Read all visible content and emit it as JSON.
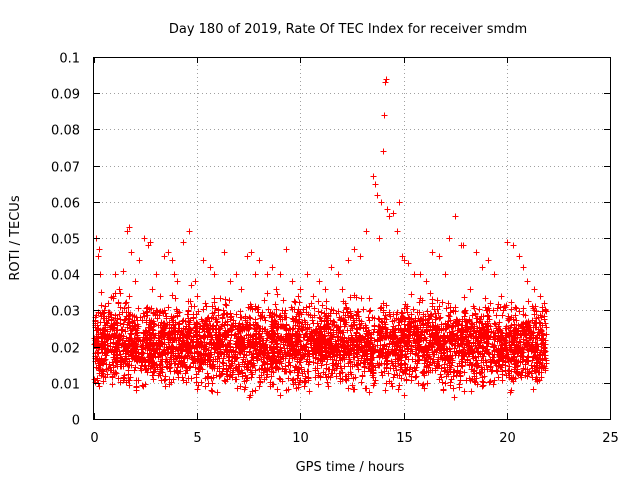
{
  "chart_data": {
    "type": "scatter",
    "title": "Day 180 of 2019, Rate Of TEC Index for receiver smdm",
    "xlabel": "GPS time / hours",
    "ylabel": "ROTI / TECUs",
    "xlim": [
      0,
      25
    ],
    "ylim": [
      0,
      0.1
    ],
    "xticks": [
      "0",
      "5",
      "10",
      "15",
      "20",
      "25"
    ],
    "yticks": [
      "0",
      "0.01",
      "0.02",
      "0.03",
      "0.04",
      "0.05",
      "0.06",
      "0.07",
      "0.08",
      "0.09",
      "0.1"
    ],
    "grid": true,
    "marker": "+",
    "color": "#ff0000",
    "series": [
      {
        "x": [
          0.1,
          0.2,
          0.25,
          0.3,
          0.35,
          0.5,
          0.6,
          0.7,
          0.8,
          0.9,
          1.0,
          1.2,
          1.4,
          1.6,
          1.7,
          1.8,
          2.0,
          2.2,
          2.4,
          2.6,
          2.7,
          2.8,
          3.0,
          3.2,
          3.4,
          3.6,
          3.8,
          3.9,
          4.0,
          4.3,
          4.6,
          4.7,
          4.9,
          5.0,
          5.3,
          5.6,
          5.8,
          6.0,
          6.3,
          6.6,
          6.9,
          7.1,
          7.4,
          7.6,
          7.8,
          8.0,
          8.4,
          8.6,
          8.8,
          9.0,
          9.3,
          9.6,
          9.9,
          10.0,
          10.3,
          10.6,
          10.9,
          11.2,
          11.5,
          11.8,
          12.0,
          12.3,
          12.6,
          12.9,
          13.2,
          13.5,
          13.6,
          13.7,
          13.8,
          13.9,
          14.0,
          14.05,
          14.1,
          14.15,
          14.2,
          14.3,
          14.5,
          14.7,
          14.8,
          14.9,
          15.0,
          15.2,
          15.5,
          15.8,
          16.1,
          16.4,
          16.7,
          17.0,
          17.2,
          17.5,
          17.8,
          17.9,
          18.2,
          18.5,
          18.8,
          19.1,
          19.4,
          19.7,
          20.0,
          20.3,
          20.6,
          20.8,
          21.0,
          21.3,
          21.6,
          21.8
        ],
        "y": [
          0.05,
          0.045,
          0.047,
          0.04,
          0.035,
          0.03,
          0.028,
          0.032,
          0.026,
          0.034,
          0.04,
          0.036,
          0.041,
          0.052,
          0.053,
          0.046,
          0.038,
          0.044,
          0.05,
          0.048,
          0.049,
          0.036,
          0.04,
          0.034,
          0.045,
          0.046,
          0.044,
          0.04,
          0.038,
          0.049,
          0.052,
          0.037,
          0.038,
          0.034,
          0.044,
          0.042,
          0.04,
          0.03,
          0.046,
          0.038,
          0.04,
          0.036,
          0.045,
          0.046,
          0.04,
          0.044,
          0.04,
          0.042,
          0.036,
          0.04,
          0.047,
          0.038,
          0.034,
          0.036,
          0.04,
          0.034,
          0.038,
          0.036,
          0.042,
          0.04,
          0.036,
          0.044,
          0.047,
          0.045,
          0.052,
          0.067,
          0.065,
          0.062,
          0.05,
          0.06,
          0.074,
          0.084,
          0.093,
          0.094,
          0.058,
          0.056,
          0.057,
          0.052,
          0.06,
          0.045,
          0.044,
          0.043,
          0.04,
          0.04,
          0.038,
          0.046,
          0.045,
          0.04,
          0.05,
          0.056,
          0.048,
          0.048,
          0.036,
          0.046,
          0.042,
          0.044,
          0.04,
          0.034,
          0.049,
          0.048,
          0.045,
          0.042,
          0.038,
          0.036,
          0.034,
          0.032
        ],
        "baseline_range": [
          0.005,
          0.035
        ],
        "baseline_x_range": [
          0,
          21.9
        ]
      }
    ]
  }
}
